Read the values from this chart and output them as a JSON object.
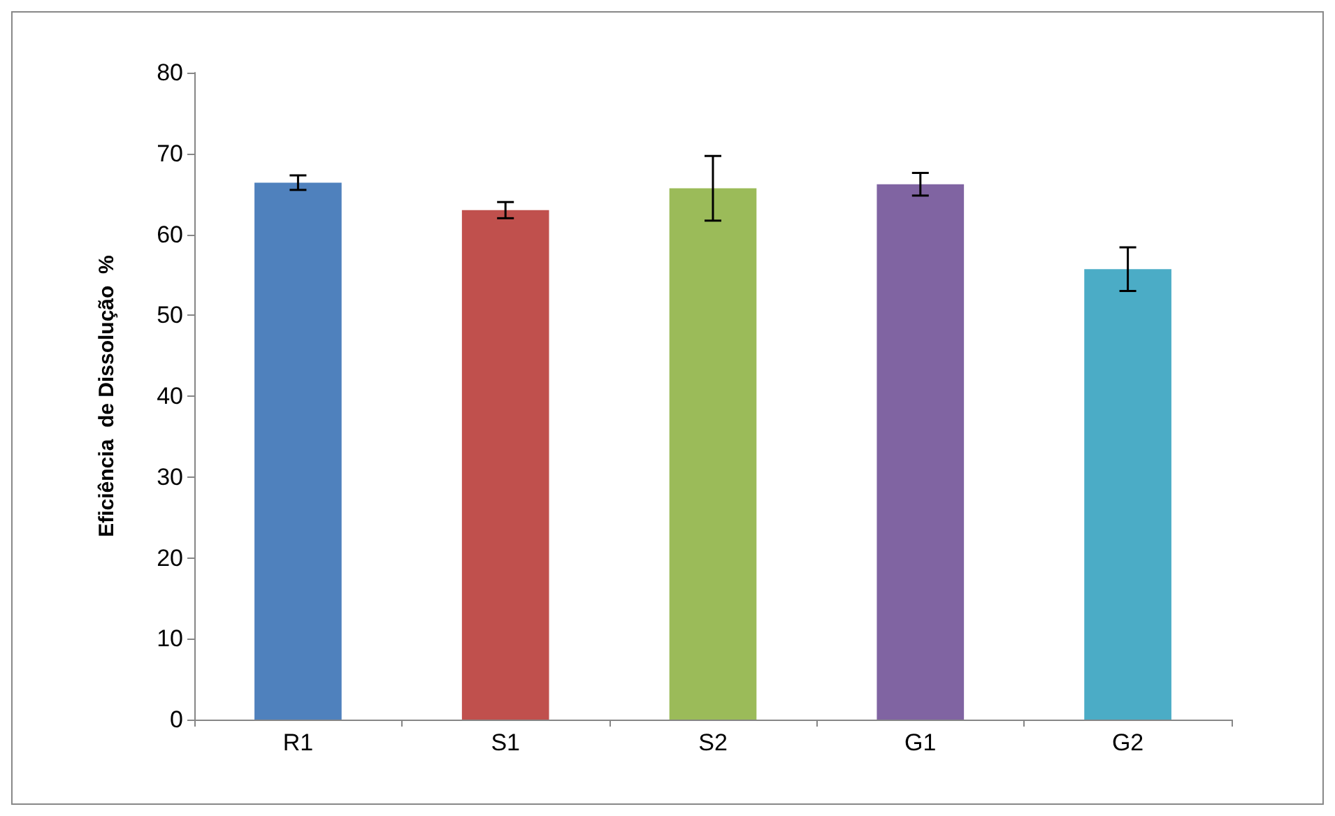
{
  "chart_data": {
    "type": "bar",
    "ylabel": "Eficiência  de Dissolução  %",
    "categories": [
      "R1",
      "S1",
      "S2",
      "G1",
      "G2"
    ],
    "values": [
      66.4,
      63.0,
      65.7,
      66.2,
      55.7
    ],
    "colors": [
      "#4f81bd",
      "#c0504d",
      "#9bbb59",
      "#8064a2",
      "#4bacc6"
    ],
    "errors": [
      0.9,
      1.0,
      4.0,
      1.4,
      2.7
    ],
    "ylim": [
      0,
      80
    ],
    "yticks": [
      0,
      10,
      20,
      30,
      40,
      50,
      60,
      70,
      80
    ],
    "grid": false
  }
}
